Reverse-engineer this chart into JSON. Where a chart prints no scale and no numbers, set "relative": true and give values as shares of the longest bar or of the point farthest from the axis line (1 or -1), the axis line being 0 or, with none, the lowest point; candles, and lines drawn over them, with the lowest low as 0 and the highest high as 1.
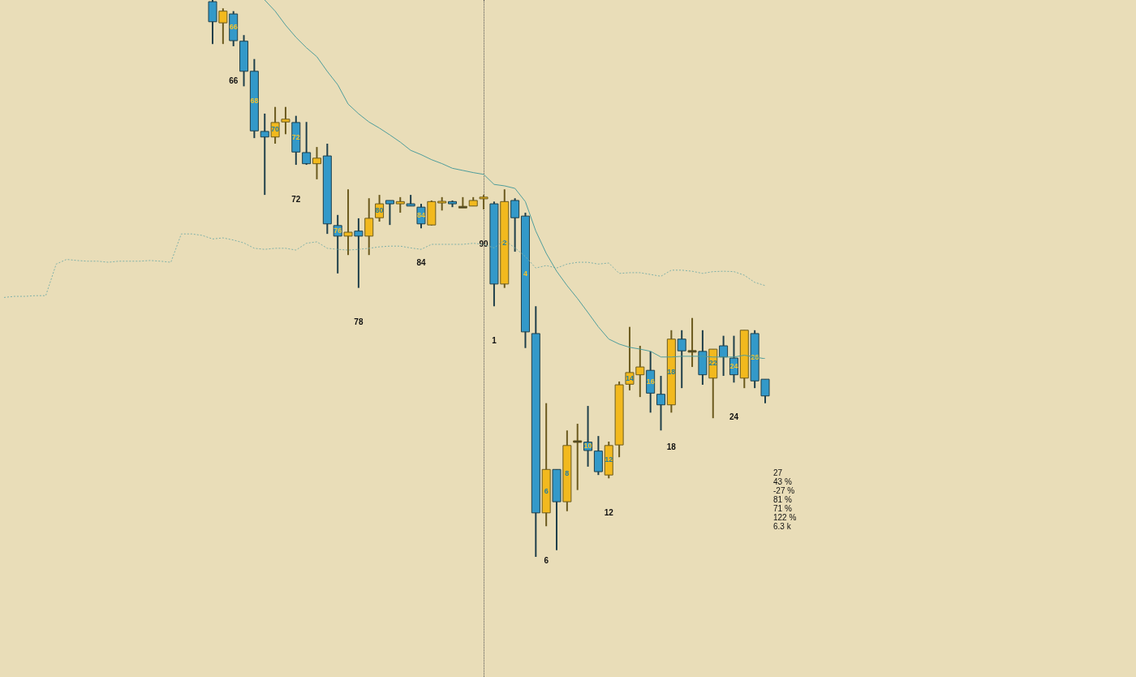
{
  "chart_data": [
    {
      "type": "candlestick",
      "relative": true,
      "categories": [
        null,
        null,
        null,
        null,
        null,
        null,
        null,
        null,
        null,
        null,
        null,
        null,
        null,
        null,
        null,
        null,
        null,
        null,
        null,
        null,
        null,
        null,
        null,
        null,
        null,
        null,
        null,
        null,
        null,
        null,
        null,
        null,
        null,
        null,
        null,
        null,
        null,
        null,
        null,
        null,
        null,
        null,
        null,
        null,
        null,
        null,
        null,
        null,
        null,
        null,
        null,
        null,
        null,
        null
      ],
      "value_labels": [
        null,
        null,
        "66",
        null,
        "68",
        null,
        "70",
        null,
        "72",
        null,
        null,
        null,
        "76",
        null,
        null,
        null,
        "80",
        null,
        null,
        null,
        "84",
        null,
        null,
        null,
        null,
        null,
        null,
        null,
        "2",
        null,
        "4",
        null,
        "6",
        null,
        "8",
        null,
        "10",
        null,
        "12",
        null,
        "14",
        null,
        "16",
        null,
        "18",
        null,
        null,
        null,
        "22",
        null,
        "24",
        null,
        "26",
        null
      ],
      "ohlc": [
        [
          0.997,
          1,
          0.921,
          0.961
        ],
        [
          0.959,
          0.985,
          0.921,
          0.98
        ],
        [
          0.975,
          0.98,
          0.917,
          0.927
        ],
        [
          0.926,
          0.937,
          0.845,
          0.872
        ],
        [
          0.872,
          0.894,
          0.752,
          0.765
        ],
        [
          0.764,
          0.796,
          0.65,
          0.754
        ],
        [
          0.754,
          0.808,
          0.742,
          0.78
        ],
        [
          0.781,
          0.808,
          0.759,
          0.786
        ],
        [
          0.78,
          0.792,
          0.704,
          0.727
        ],
        [
          0.726,
          0.781,
          0.704,
          0.706
        ],
        [
          0.706,
          0.736,
          0.678,
          0.716
        ],
        [
          0.72,
          0.742,
          0.58,
          0.598
        ],
        [
          0.595,
          0.614,
          0.509,
          0.576
        ],
        [
          0.576,
          0.66,
          0.542,
          0.583
        ],
        [
          0.585,
          0.608,
          0.483,
          0.576
        ],
        [
          0.576,
          0.644,
          0.542,
          0.608
        ],
        [
          0.609,
          0.65,
          0.602,
          0.634
        ],
        [
          0.64,
          0.64,
          0.596,
          0.634
        ],
        [
          0.634,
          0.646,
          0.618,
          0.638
        ],
        [
          0.634,
          0.65,
          0.63,
          0.63
        ],
        [
          0.628,
          0.634,
          0.59,
          0.598
        ],
        [
          0.596,
          0.64,
          0.595,
          0.638
        ],
        [
          0.636,
          0.646,
          0.622,
          0.638
        ],
        [
          0.638,
          0.64,
          0.628,
          0.634
        ],
        [
          0.628,
          0.646,
          0.628,
          0.628
        ],
        [
          0.63,
          0.646,
          0.63,
          0.64
        ],
        [
          0.643,
          0.65,
          0.624,
          0.646
        ],
        [
          0.634,
          0.638,
          0.45,
          0.49
        ],
        [
          0.49,
          0.66,
          0.483,
          0.638
        ],
        [
          0.64,
          0.644,
          0.548,
          0.609
        ],
        [
          0.612,
          0.618,
          0.375,
          0.404
        ],
        [
          0.401,
          0.45,
          0,
          0.079
        ],
        [
          0.079,
          0.276,
          0.055,
          0.157
        ],
        [
          0.157,
          0.157,
          0.012,
          0.099
        ],
        [
          0.099,
          0.227,
          0.082,
          0.2
        ],
        [
          0.207,
          0.239,
          0.12,
          0.207
        ],
        [
          0.206,
          0.271,
          0.162,
          0.191
        ],
        [
          0.19,
          0.217,
          0.147,
          0.153
        ],
        [
          0.147,
          0.207,
          0.141,
          0.2
        ],
        [
          0.201,
          0.315,
          0.179,
          0.309
        ],
        [
          0.31,
          0.413,
          0.299,
          0.331
        ],
        [
          0.327,
          0.379,
          0.287,
          0.341
        ],
        [
          0.335,
          0.369,
          0.259,
          0.294
        ],
        [
          0.292,
          0.325,
          0.227,
          0.273
        ],
        [
          0.273,
          0.407,
          0.259,
          0.391
        ],
        [
          0.391,
          0.407,
          0.303,
          0.37
        ],
        [
          0.369,
          0.429,
          0.341,
          0.369
        ],
        [
          0.369,
          0.407,
          0.309,
          0.327
        ],
        [
          0.321,
          0.373,
          0.249,
          0.373
        ],
        [
          0.379,
          0.397,
          0.325,
          0.359
        ],
        [
          0.357,
          0.397,
          0.313,
          0.327
        ],
        [
          0.321,
          0.407,
          0.303,
          0.407
        ],
        [
          0.401,
          0.407,
          0.303,
          0.316
        ],
        [
          0.319,
          0.319,
          0.276,
          0.289
        ]
      ],
      "colors": [
        "#3399c9",
        "#f2b91e",
        "#3399c9",
        "#3399c9",
        "#3399c9",
        "#3399c9",
        "#f2b91e",
        "#f2b91e",
        "#3399c9",
        "#3399c9",
        "#f2b91e",
        "#3399c9",
        "#3399c9",
        "#f2b91e",
        "#3399c9",
        "#f2b91e",
        "#f2b91e",
        "#3399c9",
        "#f2b91e",
        "#3399c9",
        "#3399c9",
        "#f2b91e",
        "#f2b91e",
        "#3399c9",
        "#3b3b2a",
        "#f2b91e",
        "#f2b91e",
        "#3399c9",
        "#f2b91e",
        "#3399c9",
        "#3399c9",
        "#3399c9",
        "#f2b91e",
        "#3399c9",
        "#f2b91e",
        "#3b3b2a",
        "#3399c9",
        "#3399c9",
        "#f2b91e",
        "#f2b91e",
        "#f2b91e",
        "#f2b91e",
        "#3399c9",
        "#3399c9",
        "#f2b91e",
        "#3399c9",
        "#3b3b2a",
        "#3399c9",
        "#f2b91e",
        "#3399c9",
        "#3399c9",
        "#f2b91e",
        "#3399c9",
        "#3399c9"
      ],
      "annotations": [
        "66",
        "72",
        "78",
        "84",
        "90",
        "1",
        "6",
        "12",
        "18",
        "24",
        "27",
        "43 %",
        "-27 %",
        "81 %",
        "71 %",
        "122 %",
        "6.3 k"
      ]
    },
    {
      "type": "line",
      "relative": true,
      "categories": [
        null,
        null,
        null,
        null,
        null,
        null,
        null,
        null,
        null,
        null,
        null,
        null,
        null,
        null,
        null,
        null,
        null,
        null,
        null,
        null,
        null,
        null,
        null,
        null,
        null,
        null,
        null,
        null,
        null,
        null,
        null,
        null,
        null,
        null,
        null,
        null,
        null,
        null,
        null,
        null,
        null,
        null,
        null,
        null,
        null,
        null,
        null,
        null,
        null,
        null,
        null,
        null,
        null,
        null,
        null,
        null,
        null,
        null,
        null,
        null,
        null,
        null,
        null,
        null,
        null,
        null,
        null,
        null,
        null,
        null,
        null,
        null,
        null,
        null
      ],
      "series": [
        {
          "color": "#4f9d9b",
          "values": [
            null,
            null,
            null,
            null,
            null,
            null,
            null,
            null,
            null,
            null,
            null,
            null,
            null,
            null,
            null,
            null,
            null,
            null,
            null,
            null,
            null,
            null,
            null,
            null,
            null,
            1,
            0.969,
            0.93,
            0.896,
            0.867,
            0.842,
            0.801,
            0.764,
            0.71,
            0.683,
            0.66,
            0.643,
            0.624,
            0.604,
            0.581,
            0.569,
            0.555,
            0.544,
            0.531,
            0.525,
            0.519,
            0.514,
            0.486,
            0.482,
            0.475,
            0.438,
            0.356,
            0.294,
            0.244,
            0.204,
            0.168,
            0.129,
            0.089,
            0.055,
            0.041,
            0.032,
            0.027,
            0.021,
            0.005,
            0.005,
            0.007,
            0.007,
            0.007,
            0.005,
            0.005,
            0.005,
            0.01,
            0.005,
            0
          ]
        },
        {
          "color": "#7fb0a8",
          "line_style": "dotted",
          "values": [
            0.171,
            0.174,
            0.174,
            0.176,
            0.176,
            0.264,
            0.277,
            0.274,
            0.272,
            0.272,
            0.269,
            0.272,
            0.272,
            0.272,
            0.274,
            0.272,
            0.269,
            0.348,
            0.348,
            0.344,
            0.334,
            0.337,
            0.331,
            0.323,
            0.308,
            0.305,
            0.308,
            0.308,
            0.303,
            0.322,
            0.326,
            0.308,
            0.305,
            0.303,
            0.305,
            0.308,
            0.312,
            0.314,
            0.314,
            0.309,
            0.305,
            0.319,
            0.319,
            0.319,
            0.319,
            0.322,
            0.319,
            0.309,
            0.331,
            0.309,
            0.285,
            0.253,
            0.26,
            0.253,
            0.264,
            0.269,
            0.269,
            0.264,
            0.267,
            0.238,
            0.24,
            0.24,
            0.235,
            0.23,
            0.247,
            0.247,
            0.244,
            0.238,
            0.243,
            0.244,
            0.243,
            0.233,
            0.213,
            0.204
          ]
        }
      ]
    }
  ]
}
